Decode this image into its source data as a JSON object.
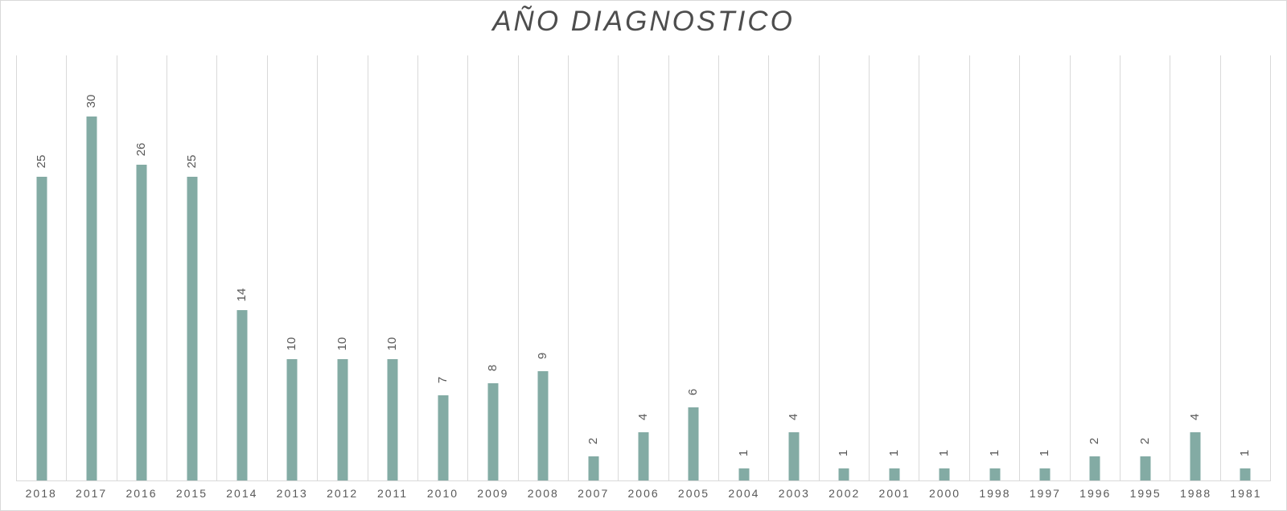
{
  "chart_data": {
    "type": "bar",
    "title": "AÑO DIAGNOSTICO",
    "categories": [
      "2018",
      "2017",
      "2016",
      "2015",
      "2014",
      "2013",
      "2012",
      "2011",
      "2010",
      "2009",
      "2008",
      "2007",
      "2006",
      "2005",
      "2004",
      "2003",
      "2002",
      "2001",
      "2000",
      "1998",
      "1997",
      "1996",
      "1995",
      "1988",
      "1981"
    ],
    "values": [
      25,
      30,
      26,
      25,
      14,
      10,
      10,
      10,
      7,
      8,
      9,
      2,
      4,
      6,
      1,
      4,
      1,
      1,
      1,
      1,
      1,
      2,
      2,
      4,
      1
    ],
    "xlabel": "",
    "ylabel": "",
    "ylim": [
      0,
      35
    ],
    "yaxis_visible": false,
    "grid": "vertical-only",
    "legend_position": "none",
    "data_labels": "above-bars-rotated-90",
    "colors": {
      "bar": "#83aba4",
      "gridline": "#d9d9d9",
      "axis_line": "#d9d9d9",
      "labels": "#595959",
      "title": "#4d4d4d",
      "background": "#ffffff"
    }
  }
}
